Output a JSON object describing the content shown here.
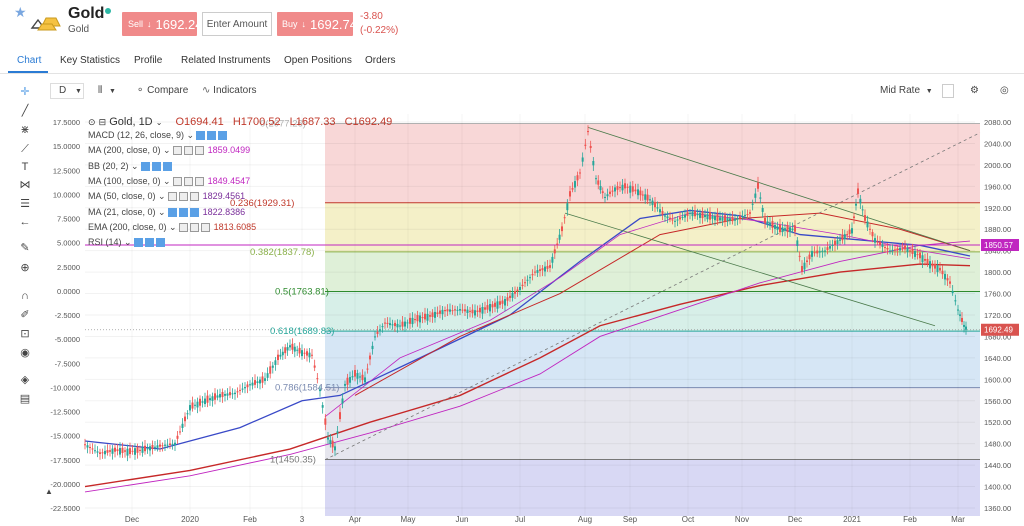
{
  "header": {
    "title": "Gold",
    "subtitle": "Gold",
    "sell_label": "Sell",
    "sell_price": "1692.24",
    "amount_placeholder": "Enter Amount",
    "buy_label": "Buy",
    "buy_price": "1692.74",
    "change_abs": "-3.80",
    "change_pct": "(-0.22%)"
  },
  "tabs": [
    "Chart",
    "Key Statistics",
    "Profile",
    "Related Instruments",
    "Open Positions",
    "Orders"
  ],
  "toolbar": {
    "interval": "D",
    "compare_label": "Compare",
    "indicators_label": "Indicators",
    "price_mode": "Mid Rate"
  },
  "chart": {
    "symbol_label": "Gold, 1D",
    "open": "O1694.41",
    "high": "H1700.52",
    "low": "L1687.33",
    "close": "C1692.49",
    "indicators": [
      {
        "label": "MACD (12, 26, close, 9)",
        "value": "",
        "color": "#444"
      },
      {
        "label": "MA (200, close, 0)",
        "value": "1859.0499",
        "color": "#c026c0"
      },
      {
        "label": "BB (20, 2)",
        "value": "",
        "color": "#444"
      },
      {
        "label": "MA (100, close, 0)",
        "value": "1849.4547",
        "color": "#c026c0"
      },
      {
        "label": "MA (50, close, 0)",
        "value": "1829.4561",
        "color": "#7a2e9a"
      },
      {
        "label": "MA (21, close, 0)",
        "value": "1822.8386",
        "color": "#7a2e9a"
      },
      {
        "label": "EMA (200, close, 0)",
        "value": "1813.6085",
        "color": "#c0392b"
      },
      {
        "label": "RSI (14)",
        "value": "",
        "color": "#444"
      }
    ],
    "left_axis": [
      "17.5000",
      "15.0000",
      "12.5000",
      "10.0000",
      "7.5000",
      "5.0000",
      "2.5000",
      "0.0000",
      "-2.5000",
      "-5.0000",
      "-7.5000",
      "-10.0000",
      "-12.5000",
      "-15.0000",
      "-17.5000",
      "-20.0000",
      "-22.5000"
    ],
    "right_axis": [
      "2080.00",
      "2040.00",
      "2000.00",
      "1960.00",
      "1920.00",
      "1880.00",
      "1840.00",
      "1800.00",
      "1760.00",
      "1720.00",
      "1680.00",
      "1640.00",
      "1600.00",
      "1560.00",
      "1520.00",
      "1480.00",
      "1440.00",
      "1400.00",
      "1360.00"
    ],
    "x_axis": [
      "Dec",
      "2020",
      "Feb",
      "3",
      "Apr",
      "May",
      "Jun",
      "Jul",
      "Aug",
      "Sep",
      "Oct",
      "Nov",
      "Dec",
      "2021",
      "Feb",
      "Mar"
    ],
    "fib_levels": [
      {
        "label": "0(2077.26)",
        "price": 2077.26,
        "color": "#b0b0b0"
      },
      {
        "label": "0.236(1929.31)",
        "price": 1929.31,
        "color": "#c0392b"
      },
      {
        "label": "0.382(1837.78)",
        "price": 1837.78,
        "color": "#8ab04a"
      },
      {
        "label": "0.5(1763.81)",
        "price": 1763.81,
        "color": "#2e8b2e"
      },
      {
        "label": "0.618(1689.83)",
        "price": 1689.83,
        "color": "#26a69a"
      },
      {
        "label": "0.786(1584.51)",
        "price": 1584.51,
        "color": "#7a8ab0"
      },
      {
        "label": "1(1450.35)",
        "price": 1450.35,
        "color": "#777"
      }
    ],
    "price_tags": [
      {
        "label": "1850.57",
        "price": 1850.57,
        "color": "#c026c0"
      },
      {
        "label": "1692.49",
        "price": 1692.49,
        "color": "#d9534f"
      }
    ]
  }
}
